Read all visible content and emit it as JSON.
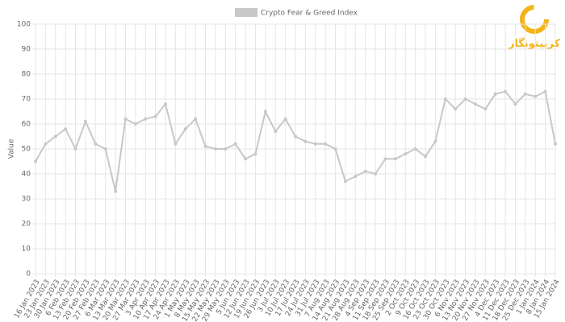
{
  "chart_data": {
    "type": "line",
    "y_label": "Value",
    "logo": "کریپتونگار",
    "categories": [
      "16 Jan 2023",
      "23 Jan 2023",
      "30 Jan 2023",
      "6 Feb 2023",
      "13 Feb 2023",
      "20 Feb 2023",
      "27 Feb 2023",
      "6 Mar 2023",
      "13 Mar 2023",
      "20 Mar 2023",
      "27 Mar 2023",
      "3 Apr 2023",
      "10 Apr 2023",
      "17 Apr 2023",
      "24 Apr 2023",
      "1 May 2023",
      "8 May 2023",
      "15 May 2023",
      "22 May 2023",
      "29 May 2023",
      "5 Jun 2023",
      "12 Jun 2023",
      "19 Jun 2023",
      "26 Jun 2023",
      "3 Jul 2023",
      "10 Jul 2023",
      "17 Jul 2023",
      "24 Jul 2023",
      "31 Jul 2023",
      "7 Aug 2023",
      "14 Aug 2023",
      "21 Aug 2023",
      "28 Aug 2023",
      "4 Sep 2023",
      "11 Sep 2023",
      "18 Sep 2023",
      "25 Sep 2023",
      "2 Oct 2023",
      "9 Oct 2023",
      "16 Oct 2023",
      "23 Oct 2023",
      "30 Oct 2023",
      "6 Nov 2023",
      "13 Nov 2023",
      "20 Nov 2023",
      "27 Nov 2023",
      "4 Dec 2023",
      "11 Dec 2023",
      "18 Dec 2023",
      "25 Dec 2023",
      "1 Jan 2024",
      "8 Jan 2024",
      "15 Jan 2024"
    ],
    "series": [
      {
        "name": "Crypto Fear & Greed Index",
        "color": "#c8c8c8",
        "values": [
          45,
          52,
          55,
          58,
          50,
          61,
          52,
          50,
          33,
          62,
          60,
          62,
          63,
          68,
          52,
          58,
          62,
          51,
          50,
          50,
          52,
          46,
          48,
          65,
          57,
          62,
          55,
          53,
          52,
          52,
          50,
          37,
          39,
          41,
          40,
          46,
          46,
          48,
          50,
          47,
          53,
          70,
          66,
          70,
          68,
          66,
          72,
          73,
          68,
          72,
          71,
          73,
          52
        ]
      }
    ],
    "ylim": [
      0,
      100
    ],
    "yticks": [
      0,
      10,
      20,
      30,
      40,
      50,
      60,
      70,
      80,
      90,
      100
    ],
    "grid": true
  }
}
